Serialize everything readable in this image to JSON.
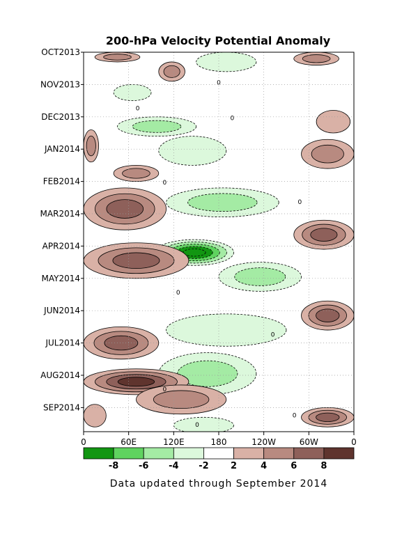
{
  "chart_data": {
    "type": "heatmap",
    "title": "200-hPa Velocity Potential Anomaly",
    "footer": "Data updated through September 2014",
    "x_tick_labels": [
      "0",
      "60E",
      "120E",
      "180",
      "120W",
      "60W",
      "0"
    ],
    "x_ticks_deg": [
      0,
      60,
      120,
      180,
      240,
      300,
      360
    ],
    "xlim": [
      0,
      360
    ],
    "y_tick_labels": [
      "OCT2013",
      "NOV2013",
      "DEC2013",
      "JAN2014",
      "FEB2014",
      "MAR2014",
      "APR2014",
      "MAY2014",
      "JUN2014",
      "JUL2014",
      "AUG2014",
      "SEP2014"
    ],
    "ylim_months": [
      0,
      11.8
    ],
    "colorbar": {
      "labels": [
        "-8",
        "-6",
        "-4",
        "-2",
        "2",
        "4",
        "6",
        "8"
      ],
      "bin_colors": [
        "#129612",
        "#5fd35f",
        "#a4eba4",
        "#dcf8dc",
        "#ffffff",
        "#d9b1a6",
        "#b88a80",
        "#8e605a",
        "#5f342e"
      ]
    },
    "zero_contour_label": "0",
    "anomaly_features": [
      {
        "sign": "positive",
        "level": 4,
        "lon": [
          15,
          75
        ],
        "month": [
          0.0,
          0.3
        ]
      },
      {
        "sign": "positive",
        "level": 4,
        "lon": [
          100,
          135
        ],
        "month": [
          0.3,
          0.9
        ]
      },
      {
        "sign": "positive",
        "level": 4,
        "lon": [
          280,
          340
        ],
        "month": [
          0.0,
          0.4
        ]
      },
      {
        "sign": "negative",
        "level": -2,
        "lon": [
          150,
          230
        ],
        "month": [
          0.0,
          0.6
        ]
      },
      {
        "sign": "negative",
        "level": -2,
        "lon": [
          40,
          90
        ],
        "month": [
          1.0,
          1.5
        ]
      },
      {
        "sign": "positive",
        "level": 2,
        "lon": [
          310,
          355
        ],
        "month": [
          1.8,
          2.5
        ]
      },
      {
        "sign": "negative",
        "level": -4,
        "lon": [
          45,
          150
        ],
        "month": [
          2.0,
          2.6
        ]
      },
      {
        "sign": "negative",
        "level": -2,
        "lon": [
          100,
          190
        ],
        "month": [
          2.6,
          3.5
        ]
      },
      {
        "sign": "positive",
        "level": 4,
        "lon": [
          0,
          20
        ],
        "month": [
          2.4,
          3.4
        ]
      },
      {
        "sign": "positive",
        "level": 4,
        "lon": [
          40,
          100
        ],
        "month": [
          3.5,
          4.0
        ]
      },
      {
        "sign": "positive",
        "level": 4,
        "lon": [
          290,
          360
        ],
        "month": [
          2.7,
          3.6
        ]
      },
      {
        "sign": "positive",
        "level": 6,
        "lon": [
          0,
          110
        ],
        "month": [
          4.2,
          5.5
        ]
      },
      {
        "sign": "negative",
        "level": -4,
        "lon": [
          110,
          260
        ],
        "month": [
          4.2,
          5.1
        ]
      },
      {
        "sign": "positive",
        "level": 6,
        "lon": [
          280,
          360
        ],
        "month": [
          5.2,
          6.1
        ]
      },
      {
        "sign": "negative",
        "level": -10,
        "lon": [
          95,
          200
        ],
        "month": [
          5.8,
          6.6
        ]
      },
      {
        "sign": "positive",
        "level": 6,
        "lon": [
          0,
          140
        ],
        "month": [
          5.9,
          7.0
        ]
      },
      {
        "sign": "negative",
        "level": -4,
        "lon": [
          180,
          290
        ],
        "month": [
          6.5,
          7.4
        ]
      },
      {
        "sign": "positive",
        "level": 6,
        "lon": [
          290,
          360
        ],
        "month": [
          7.7,
          8.6
        ]
      },
      {
        "sign": "negative",
        "level": -2,
        "lon": [
          110,
          270
        ],
        "month": [
          8.1,
          9.1
        ]
      },
      {
        "sign": "positive",
        "level": 6,
        "lon": [
          0,
          100
        ],
        "month": [
          8.5,
          9.5
        ]
      },
      {
        "sign": "negative",
        "level": -4,
        "lon": [
          100,
          230
        ],
        "month": [
          9.3,
          10.6
        ]
      },
      {
        "sign": "positive",
        "level": 8,
        "lon": [
          0,
          140
        ],
        "month": [
          9.8,
          10.6
        ]
      },
      {
        "sign": "positive",
        "level": 4,
        "lon": [
          70,
          190
        ],
        "month": [
          10.3,
          11.2
        ]
      },
      {
        "sign": "positive",
        "level": 6,
        "lon": [
          290,
          360
        ],
        "month": [
          11.0,
          11.6
        ]
      },
      {
        "sign": "positive",
        "level": 2,
        "lon": [
          0,
          30
        ],
        "month": [
          10.9,
          11.6
        ]
      },
      {
        "sign": "negative",
        "level": -2,
        "lon": [
          120,
          200
        ],
        "month": [
          11.3,
          11.8
        ]
      }
    ]
  }
}
